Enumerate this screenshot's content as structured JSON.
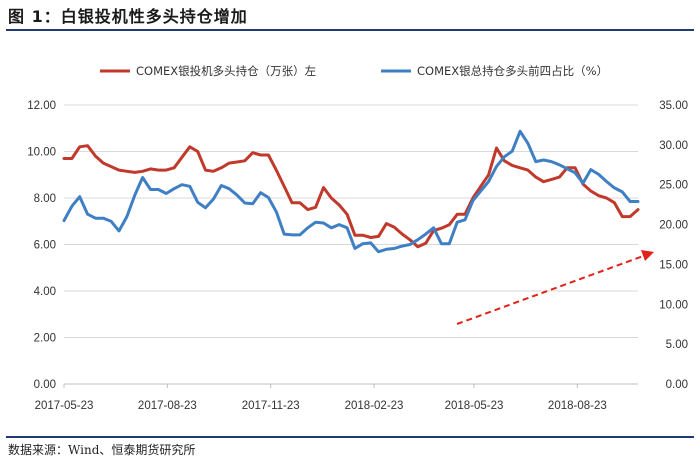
{
  "figure": {
    "title": "图 1：白银投机性多头持仓增加",
    "source": "数据来源：Wind、恒泰期货研究所"
  },
  "colors": {
    "speculative_long": "#c0392b",
    "total_long_share": "#3f7fc4",
    "trend_arrow": "#e0221b",
    "rule": "#1f3b73",
    "grid": "#d9d9d9"
  },
  "chart_data": {
    "type": "line",
    "x_tick_labels": [
      "2017-05-23",
      "2017-08-23",
      "2017-11-23",
      "2018-02-23",
      "2018-05-23",
      "2018-08-23"
    ],
    "left_axis": {
      "ylim": [
        0,
        12
      ],
      "tick_labels": [
        "0.00",
        "2.00",
        "4.00",
        "6.00",
        "8.00",
        "10.00",
        "12.00"
      ]
    },
    "right_axis": {
      "ylim": [
        0,
        35
      ],
      "tick_labels": [
        "0.00",
        "5.00",
        "10.00",
        "15.00",
        "20.00",
        "25.00",
        "30.00",
        "35.00"
      ]
    },
    "grid": true,
    "legend_position": "top",
    "x_range": [
      "2017-05-23",
      "2018-10-16"
    ],
    "series": [
      {
        "name": "COMEX银投机多头持仓（万张）左",
        "axis": "left",
        "dates": [
          "2017-05-23",
          "2017-05-30",
          "2017-06-06",
          "2017-06-13",
          "2017-06-20",
          "2017-06-27",
          "2017-07-04",
          "2017-07-11",
          "2017-07-18",
          "2017-07-25",
          "2017-08-01",
          "2017-08-08",
          "2017-08-15",
          "2017-08-22",
          "2017-08-29",
          "2017-09-05",
          "2017-09-12",
          "2017-09-19",
          "2017-09-26",
          "2017-10-03",
          "2017-10-10",
          "2017-10-17",
          "2017-10-24",
          "2017-10-31",
          "2017-11-07",
          "2017-11-14",
          "2017-11-21",
          "2017-11-28",
          "2017-12-05",
          "2017-12-12",
          "2017-12-19",
          "2017-12-26",
          "2018-01-02",
          "2018-01-09",
          "2018-01-16",
          "2018-01-23",
          "2018-01-30",
          "2018-02-06",
          "2018-02-13",
          "2018-02-20",
          "2018-02-27",
          "2018-03-06",
          "2018-03-13",
          "2018-03-20",
          "2018-03-27",
          "2018-04-03",
          "2018-04-10",
          "2018-04-17",
          "2018-04-24",
          "2018-05-01",
          "2018-05-08",
          "2018-05-15",
          "2018-05-22",
          "2018-05-29",
          "2018-06-05",
          "2018-06-12",
          "2018-06-19",
          "2018-06-26",
          "2018-07-03",
          "2018-07-10",
          "2018-07-17",
          "2018-07-24",
          "2018-07-31",
          "2018-08-07",
          "2018-08-14",
          "2018-08-21",
          "2018-08-28",
          "2018-09-04",
          "2018-09-11",
          "2018-09-18",
          "2018-09-25",
          "2018-10-02",
          "2018-10-09",
          "2018-10-16"
        ],
        "values": [
          9.7,
          9.7,
          10.2,
          10.25,
          9.8,
          9.5,
          9.35,
          9.2,
          9.15,
          9.1,
          9.15,
          9.25,
          9.2,
          9.2,
          9.3,
          9.75,
          10.2,
          10.0,
          9.2,
          9.15,
          9.3,
          9.5,
          9.55,
          9.6,
          9.95,
          9.85,
          9.85,
          9.2,
          8.5,
          7.8,
          7.8,
          7.5,
          7.6,
          8.45,
          8.0,
          7.7,
          7.3,
          6.4,
          6.4,
          6.3,
          6.35,
          6.9,
          6.75,
          6.45,
          6.2,
          5.9,
          6.05,
          6.6,
          6.7,
          6.85,
          7.3,
          7.3,
          8.0,
          8.5,
          9.0,
          10.15,
          9.6,
          9.4,
          9.3,
          9.2,
          8.9,
          8.7,
          8.8,
          8.9,
          9.3,
          9.3,
          8.6,
          8.3,
          8.1,
          8.0,
          7.8,
          7.2,
          7.2,
          7.5
        ]
      },
      {
        "name": "COMEX银总持仓多头前四占比（%）",
        "axis": "right",
        "dates": [
          "2017-05-23",
          "2017-05-30",
          "2017-06-06",
          "2017-06-13",
          "2017-06-20",
          "2017-06-27",
          "2017-07-04",
          "2017-07-11",
          "2017-07-18",
          "2017-07-25",
          "2017-08-01",
          "2017-08-08",
          "2017-08-15",
          "2017-08-22",
          "2017-08-29",
          "2017-09-05",
          "2017-09-12",
          "2017-09-19",
          "2017-09-26",
          "2017-10-03",
          "2017-10-10",
          "2017-10-17",
          "2017-10-24",
          "2017-10-31",
          "2017-11-07",
          "2017-11-14",
          "2017-11-21",
          "2017-11-28",
          "2017-12-05",
          "2017-12-12",
          "2017-12-19",
          "2017-12-26",
          "2018-01-02",
          "2018-01-09",
          "2018-01-16",
          "2018-01-23",
          "2018-01-30",
          "2018-02-06",
          "2018-02-13",
          "2018-02-20",
          "2018-02-27",
          "2018-03-06",
          "2018-03-13",
          "2018-03-20",
          "2018-03-27",
          "2018-04-03",
          "2018-04-10",
          "2018-04-17",
          "2018-04-24",
          "2018-05-01",
          "2018-05-08",
          "2018-05-15",
          "2018-05-22",
          "2018-05-29",
          "2018-06-05",
          "2018-06-12",
          "2018-06-19",
          "2018-06-26",
          "2018-07-03",
          "2018-07-10",
          "2018-07-17",
          "2018-07-24",
          "2018-07-31",
          "2018-08-07",
          "2018-08-14",
          "2018-08-21",
          "2018-08-28",
          "2018-09-04",
          "2018-09-11",
          "2018-09-18",
          "2018-09-25",
          "2018-10-02",
          "2018-10-09",
          "2018-10-16"
        ],
        "values": [
          20.5,
          22.3,
          23.5,
          21.3,
          20.8,
          20.8,
          20.4,
          19.2,
          21.0,
          23.7,
          25.9,
          24.4,
          24.4,
          23.9,
          24.5,
          25.0,
          24.8,
          22.8,
          22.1,
          23.2,
          24.9,
          24.5,
          23.7,
          22.7,
          22.6,
          24.0,
          23.4,
          21.6,
          18.8,
          18.7,
          18.7,
          19.6,
          20.3,
          20.2,
          19.6,
          20.0,
          19.6,
          17.0,
          17.6,
          17.7,
          16.6,
          16.9,
          17.0,
          17.3,
          17.5,
          18.1,
          18.8,
          19.6,
          17.6,
          17.6,
          20.3,
          20.6,
          23.0,
          24.2,
          25.4,
          27.3,
          28.5,
          29.2,
          31.7,
          30.2,
          27.9,
          28.1,
          27.9,
          27.5,
          27.0,
          26.5,
          25.2,
          26.9,
          26.3,
          25.4,
          24.6,
          24.1,
          22.9,
          22.9
        ]
      }
    ],
    "annotations": [
      {
        "type": "arrow",
        "style": "dashed",
        "direction": "up-right"
      }
    ]
  }
}
